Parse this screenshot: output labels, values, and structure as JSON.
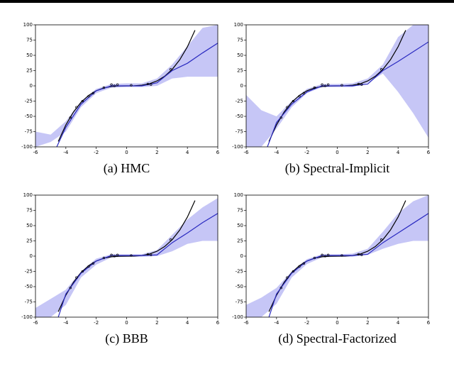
{
  "chart_data": [
    {
      "type": "line",
      "caption": "(a) HMC",
      "xlim": [
        -6,
        6
      ],
      "ylim": [
        -100,
        100
      ],
      "xticks": [
        -6,
        -4,
        -2,
        0,
        2,
        4,
        6
      ],
      "yticks": [
        -100,
        -75,
        -50,
        -25,
        0,
        25,
        50,
        75,
        100
      ],
      "series": [
        {
          "style": "band",
          "color": "#c6c6f6",
          "x": [
            -6,
            -5,
            -4,
            -3,
            -2,
            -1,
            0,
            1,
            2,
            3,
            4,
            5,
            6
          ],
          "lower": [
            -100,
            -92,
            -75,
            -35,
            -12,
            -3,
            -2,
            -2,
            0,
            12,
            15,
            15,
            15
          ],
          "upper": [
            -75,
            -80,
            -58,
            -25,
            -5,
            3,
            4,
            4,
            12,
            35,
            65,
            95,
            100
          ]
        },
        {
          "style": "line",
          "color": "#000000",
          "x": [
            -4.5,
            -4,
            -3.5,
            -3,
            -2.5,
            -2,
            -1.5,
            -1,
            -0.5,
            0,
            0.5,
            1,
            1.5,
            2,
            2.5,
            3,
            3.5,
            4,
            4.5
          ],
          "values": [
            -91.125,
            -64,
            -42.875,
            -27,
            -15.625,
            -8,
            -3.375,
            -1,
            -0.125,
            0,
            0.125,
            1,
            3.375,
            8,
            15.625,
            27,
            42.875,
            64,
            91.125
          ]
        },
        {
          "style": "line",
          "color": "#2a2ac0",
          "x": [
            -4.6,
            -4,
            -3,
            -2,
            -1,
            0,
            1,
            2,
            3,
            4,
            5,
            6
          ],
          "values": [
            -100,
            -68,
            -30,
            -8,
            0,
            0,
            0,
            5,
            25,
            37,
            54,
            70
          ]
        },
        {
          "style": "points",
          "color": "#000000",
          "x": [
            -3.7,
            -3.3,
            -2.9,
            -2.5,
            -2.2,
            -1.5,
            -1,
            -0.8,
            -0.6,
            0.3,
            1.4,
            1.6,
            2.9
          ],
          "values": [
            -52,
            -35,
            -25,
            -17,
            -12,
            -3,
            2,
            0,
            2,
            1,
            3,
            2,
            27
          ]
        }
      ]
    },
    {
      "type": "line",
      "caption": "(b) Spectral-Implicit",
      "xlim": [
        -6,
        6
      ],
      "ylim": [
        -100,
        100
      ],
      "xticks": [
        -6,
        -4,
        -2,
        0,
        2,
        4,
        6
      ],
      "yticks": [
        -100,
        -75,
        -50,
        -25,
        0,
        25,
        50,
        75,
        100
      ],
      "series": [
        {
          "style": "band",
          "color": "#c6c6f6",
          "x": [
            -6,
            -5,
            -4,
            -3,
            -2,
            -1,
            0,
            1,
            2,
            3,
            4,
            5,
            6
          ],
          "lower": [
            -100,
            -100,
            -70,
            -35,
            -12,
            -2,
            -2,
            -2,
            5,
            20,
            -10,
            -45,
            -85
          ],
          "upper": [
            -15,
            -40,
            -50,
            -25,
            -5,
            3,
            3,
            4,
            12,
            35,
            80,
            100,
            100
          ]
        },
        {
          "style": "line",
          "color": "#000000",
          "x": [
            -4.5,
            -4,
            -3.5,
            -3,
            -2.5,
            -2,
            -1.5,
            -1,
            -0.5,
            0,
            0.5,
            1,
            1.5,
            2,
            2.5,
            3,
            3.5,
            4,
            4.5
          ],
          "values": [
            -91.125,
            -64,
            -42.875,
            -27,
            -15.625,
            -8,
            -3.375,
            -1,
            -0.125,
            0,
            0.125,
            1,
            3.375,
            8,
            15.625,
            27,
            42.875,
            64,
            91.125
          ]
        },
        {
          "style": "line",
          "color": "#2a2ac0",
          "x": [
            -4.6,
            -4,
            -3,
            -2,
            -1,
            0,
            1,
            2,
            3,
            4,
            5,
            6
          ],
          "values": [
            -100,
            -60,
            -30,
            -10,
            0,
            0,
            0,
            3,
            25,
            40,
            56,
            72
          ]
        },
        {
          "style": "points",
          "color": "#000000",
          "x": [
            -3.7,
            -3.3,
            -2.9,
            -2.5,
            -2.2,
            -1.5,
            -1,
            -0.8,
            -0.6,
            0.3,
            1.4,
            1.6,
            2.9
          ],
          "values": [
            -52,
            -35,
            -25,
            -17,
            -12,
            -3,
            2,
            0,
            2,
            1,
            3,
            2,
            27
          ]
        }
      ]
    },
    {
      "type": "line",
      "caption": "(c) BBB",
      "xlim": [
        -6,
        6
      ],
      "ylim": [
        -100,
        100
      ],
      "xticks": [
        -6,
        -4,
        -2,
        0,
        2,
        4,
        6
      ],
      "yticks": [
        -100,
        -75,
        -50,
        -25,
        0,
        25,
        50,
        75,
        100
      ],
      "series": [
        {
          "style": "band",
          "color": "#c6c6f6",
          "x": [
            -6,
            -5,
            -4,
            -3,
            -2,
            -1,
            0,
            1,
            2,
            3,
            4,
            5,
            6
          ],
          "lower": [
            -100,
            -100,
            -80,
            -35,
            -14,
            -2,
            -1,
            -1,
            0,
            8,
            20,
            25,
            25
          ],
          "upper": [
            -85,
            -70,
            -55,
            -25,
            -4,
            3,
            3,
            3,
            10,
            35,
            60,
            80,
            95
          ]
        },
        {
          "style": "line",
          "color": "#000000",
          "x": [
            -4.5,
            -4,
            -3.5,
            -3,
            -2.5,
            -2,
            -1.5,
            -1,
            -0.5,
            0,
            0.5,
            1,
            1.5,
            2,
            2.5,
            3,
            3.5,
            4,
            4.5
          ],
          "values": [
            -91.125,
            -64,
            -42.875,
            -27,
            -15.625,
            -8,
            -3.375,
            -1,
            -0.125,
            0,
            0.125,
            1,
            3.375,
            8,
            15.625,
            27,
            42.875,
            64,
            91.125
          ]
        },
        {
          "style": "line",
          "color": "#2a2ac0",
          "x": [
            -4.5,
            -4,
            -3,
            -2,
            -1,
            0,
            1,
            2,
            3,
            4,
            5,
            6
          ],
          "values": [
            -100,
            -62,
            -28,
            -8,
            1,
            1,
            1,
            2,
            22,
            38,
            55,
            70
          ]
        },
        {
          "style": "points",
          "color": "#000000",
          "x": [
            -3.7,
            -3.3,
            -2.9,
            -2.5,
            -2.2,
            -1.5,
            -1,
            -0.8,
            -0.6,
            0.3,
            1.4,
            1.6,
            2.9
          ],
          "values": [
            -52,
            -35,
            -25,
            -17,
            -12,
            -3,
            2,
            0,
            2,
            1,
            3,
            2,
            27
          ]
        }
      ]
    },
    {
      "type": "line",
      "caption": "(d) Spectral-Factorized",
      "xlim": [
        -6,
        6
      ],
      "ylim": [
        -100,
        100
      ],
      "xticks": [
        -6,
        -4,
        -2,
        0,
        2,
        4,
        6
      ],
      "yticks": [
        -100,
        -75,
        -50,
        -25,
        0,
        25,
        50,
        75,
        100
      ],
      "series": [
        {
          "style": "band",
          "color": "#c6c6f6",
          "x": [
            -6,
            -5,
            -4,
            -3,
            -2,
            -1,
            0,
            1,
            2,
            3,
            4,
            5,
            6
          ],
          "lower": [
            -100,
            -100,
            -78,
            -35,
            -13,
            -2,
            -1,
            -1,
            2,
            12,
            20,
            25,
            25
          ],
          "upper": [
            -80,
            -68,
            -52,
            -25,
            -5,
            3,
            3,
            4,
            12,
            40,
            70,
            90,
            100
          ]
        },
        {
          "style": "line",
          "color": "#000000",
          "x": [
            -4.5,
            -4,
            -3.5,
            -3,
            -2.5,
            -2,
            -1.5,
            -1,
            -0.5,
            0,
            0.5,
            1,
            1.5,
            2,
            2.5,
            3,
            3.5,
            4,
            4.5
          ],
          "values": [
            -91.125,
            -64,
            -42.875,
            -27,
            -15.625,
            -8,
            -3.375,
            -1,
            -0.125,
            0,
            0.125,
            1,
            3.375,
            8,
            15.625,
            27,
            42.875,
            64,
            91.125
          ]
        },
        {
          "style": "line",
          "color": "#2a2ac0",
          "x": [
            -4.5,
            -4,
            -3,
            -2,
            -1,
            0,
            1,
            2,
            3,
            4,
            5,
            6
          ],
          "values": [
            -100,
            -62,
            -28,
            -8,
            1,
            1,
            1,
            3,
            22,
            38,
            54,
            70
          ]
        },
        {
          "style": "points",
          "color": "#000000",
          "x": [
            -3.7,
            -3.3,
            -2.9,
            -2.5,
            -2.2,
            -1.5,
            -1,
            -0.8,
            -0.6,
            0.3,
            1.4,
            1.6,
            2.9
          ],
          "values": [
            -52,
            -35,
            -25,
            -17,
            -12,
            -3,
            2,
            0,
            2,
            1,
            3,
            2,
            27
          ]
        }
      ]
    }
  ]
}
